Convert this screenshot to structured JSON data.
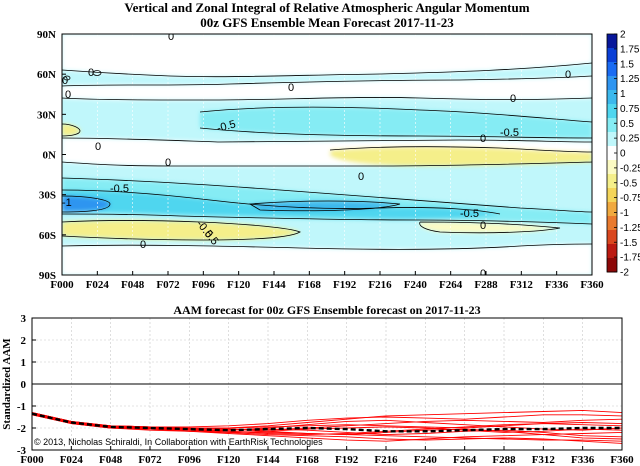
{
  "chart_data": [
    {
      "type": "heatmap",
      "title": "Vertical and Zonal Integral of Relative Atmospheric Angular Momentum",
      "subtitle": "00z GFS Ensemble Mean Forecast 2017-11-23",
      "x_ticks": [
        "F000",
        "F024",
        "F048",
        "F072",
        "F096",
        "F120",
        "F144",
        "F168",
        "F192",
        "F216",
        "F240",
        "F264",
        "F288",
        "F312",
        "F336",
        "F360"
      ],
      "y_ticks": [
        "90N",
        "60N",
        "30N",
        "0N",
        "30S",
        "60S",
        "90S"
      ],
      "colorbar": {
        "range": [
          -2,
          2
        ],
        "ticks": [
          "2",
          "1.75",
          "1.5",
          "1.25",
          "1",
          "0.75",
          "0.5",
          "0.25",
          "0",
          "-0.25",
          "-0.5",
          "-0.75",
          "-1",
          "-1.25",
          "-1.5",
          "-1.75",
          "-2"
        ],
        "colors": [
          "#08179a",
          "#0a3fd6",
          "#1a6bf2",
          "#2f95f0",
          "#3cb8ec",
          "#4fd6ef",
          "#85ecf4",
          "#c0f7fb",
          "#ffffff",
          "#fcfbc4",
          "#f5ef8a",
          "#f4d55a",
          "#f0a93f",
          "#e97a2e",
          "#d9471f",
          "#bb1a12",
          "#8c0808"
        ]
      },
      "contour_labels": [
        "0",
        "0",
        "0",
        "0",
        "0",
        "0",
        "0",
        "0",
        "0",
        "0",
        "0",
        "0",
        "-0.5",
        "-0.5",
        "-0.5",
        "-0.5",
        "-1",
        "0.5",
        "-0.5",
        "0",
        "0"
      ],
      "grid": true
    },
    {
      "type": "line",
      "title": "AAM forecast for 00z GFS Ensemble forecast on 2017-11-23",
      "ylabel": "Standardized AAM",
      "x_ticks": [
        "F000",
        "F024",
        "F048",
        "F072",
        "F096",
        "F120",
        "F144",
        "F168",
        "F192",
        "F216",
        "F240",
        "F264",
        "F288",
        "F312",
        "F336",
        "F360"
      ],
      "ylim": [
        -3,
        3
      ],
      "y_ticks": [
        "3",
        "2",
        "1",
        "0",
        "-1",
        "-2",
        "-3"
      ],
      "x": [
        0,
        24,
        48,
        72,
        96,
        120,
        144,
        168,
        192,
        216,
        240,
        264,
        288,
        312,
        336,
        360
      ],
      "mean": [
        -1.35,
        -1.75,
        -1.95,
        -2.0,
        -2.05,
        -2.1,
        -2.05,
        -2.0,
        -2.05,
        -2.15,
        -2.15,
        -2.1,
        -2.05,
        -2.05,
        -2.0,
        -2.0
      ],
      "members": [
        [
          -1.3,
          -1.7,
          -1.9,
          -1.95,
          -1.95,
          -1.9,
          -1.8,
          -1.65,
          -1.55,
          -1.5,
          -1.55,
          -1.6,
          -1.5,
          -1.4,
          -1.4,
          -1.45
        ],
        [
          -1.35,
          -1.75,
          -1.95,
          -2.0,
          -2.05,
          -2.0,
          -1.9,
          -1.75,
          -1.6,
          -1.45,
          -1.4,
          -1.35,
          -1.3,
          -1.25,
          -1.2,
          -1.3
        ],
        [
          -1.4,
          -1.8,
          -2.0,
          -2.05,
          -2.1,
          -2.15,
          -2.2,
          -2.25,
          -2.3,
          -2.35,
          -2.4,
          -2.45,
          -2.5,
          -2.55,
          -2.55,
          -2.6
        ],
        [
          -1.3,
          -1.7,
          -1.95,
          -2.0,
          -2.1,
          -2.2,
          -2.3,
          -2.35,
          -2.4,
          -2.5,
          -2.55,
          -2.5,
          -2.45,
          -2.5,
          -2.6,
          -2.7
        ],
        [
          -1.35,
          -1.75,
          -1.9,
          -1.95,
          -2.0,
          -2.0,
          -1.95,
          -1.9,
          -1.85,
          -1.9,
          -1.95,
          -2.0,
          -1.9,
          -1.8,
          -1.85,
          -1.9
        ],
        [
          -1.4,
          -1.8,
          -2.0,
          -2.05,
          -2.15,
          -2.25,
          -2.35,
          -2.45,
          -2.55,
          -2.6,
          -2.5,
          -2.4,
          -2.35,
          -2.3,
          -2.25,
          -2.2
        ],
        [
          -1.3,
          -1.7,
          -1.9,
          -2.0,
          -2.05,
          -2.1,
          -2.0,
          -1.85,
          -1.7,
          -1.65,
          -1.75,
          -1.85,
          -1.95,
          -2.05,
          -2.1,
          -2.0
        ],
        [
          -1.35,
          -1.75,
          -1.95,
          -2.05,
          -2.1,
          -2.1,
          -2.05,
          -2.1,
          -2.2,
          -2.3,
          -2.25,
          -2.15,
          -2.1,
          -2.2,
          -2.35,
          -2.4
        ],
        [
          -1.4,
          -1.75,
          -1.95,
          -2.0,
          -2.0,
          -2.05,
          -2.1,
          -2.0,
          -1.9,
          -1.8,
          -1.7,
          -1.65,
          -1.7,
          -1.75,
          -1.65,
          -1.6
        ],
        [
          -1.3,
          -1.7,
          -1.9,
          -1.95,
          -2.0,
          -2.05,
          -2.15,
          -2.25,
          -2.3,
          -2.2,
          -2.1,
          -2.05,
          -2.15,
          -2.3,
          -2.45,
          -2.5
        ],
        [
          -1.35,
          -1.8,
          -2.0,
          -2.1,
          -2.15,
          -2.2,
          -2.15,
          -2.05,
          -2.0,
          -1.95,
          -2.0,
          -2.1,
          -2.2,
          -2.15,
          -2.05,
          -2.1
        ],
        [
          -1.4,
          -1.75,
          -1.9,
          -1.95,
          -2.05,
          -2.15,
          -2.25,
          -2.3,
          -2.25,
          -2.15,
          -2.05,
          -1.95,
          -1.85,
          -1.8,
          -1.75,
          -1.8
        ]
      ],
      "annotation": "© 2013, Nicholas Schiraldi, In Collaboration with EarthRisk Technologies",
      "colors": {
        "members": "#ff0000",
        "mean": "#000000"
      },
      "grid": true
    }
  ]
}
